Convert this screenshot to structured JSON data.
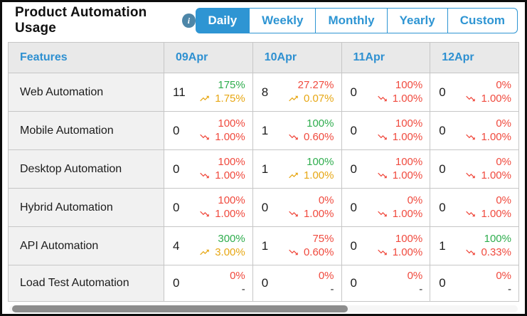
{
  "header": {
    "title": "Product Automation Usage",
    "info_icon_glyph": "i",
    "tabs": [
      {
        "label": "Daily",
        "active": true
      },
      {
        "label": "Weekly",
        "active": false
      },
      {
        "label": "Monthly",
        "active": false
      },
      {
        "label": "Yearly",
        "active": false
      },
      {
        "label": "Custom",
        "active": false
      }
    ]
  },
  "table": {
    "columns": [
      "Features",
      "09Apr",
      "10Apr",
      "11Apr",
      "12Apr"
    ],
    "rows": [
      {
        "feature": "Web Automation",
        "cells": [
          {
            "count": "11",
            "pct": "175%",
            "pct_color": "green",
            "trend": "up",
            "delta": "1.75%",
            "delta_color": "orange"
          },
          {
            "count": "8",
            "pct": "27.27%",
            "pct_color": "red",
            "trend": "up",
            "delta": "0.07%",
            "delta_color": "orange"
          },
          {
            "count": "0",
            "pct": "100%",
            "pct_color": "red",
            "trend": "down",
            "delta": "1.00%",
            "delta_color": "red"
          },
          {
            "count": "0",
            "pct": "0%",
            "pct_color": "red",
            "trend": "down",
            "delta": "1.00%",
            "delta_color": "red"
          }
        ]
      },
      {
        "feature": "Mobile Automation",
        "cells": [
          {
            "count": "0",
            "pct": "100%",
            "pct_color": "red",
            "trend": "down",
            "delta": "1.00%",
            "delta_color": "red"
          },
          {
            "count": "1",
            "pct": "100%",
            "pct_color": "green",
            "trend": "down",
            "delta": "0.60%",
            "delta_color": "red"
          },
          {
            "count": "0",
            "pct": "100%",
            "pct_color": "red",
            "trend": "down",
            "delta": "1.00%",
            "delta_color": "red"
          },
          {
            "count": "0",
            "pct": "0%",
            "pct_color": "red",
            "trend": "down",
            "delta": "1.00%",
            "delta_color": "red"
          }
        ]
      },
      {
        "feature": "Desktop Automation",
        "cells": [
          {
            "count": "0",
            "pct": "100%",
            "pct_color": "red",
            "trend": "down",
            "delta": "1.00%",
            "delta_color": "red"
          },
          {
            "count": "1",
            "pct": "100%",
            "pct_color": "green",
            "trend": "up",
            "delta": "1.00%",
            "delta_color": "orange"
          },
          {
            "count": "0",
            "pct": "100%",
            "pct_color": "red",
            "trend": "down",
            "delta": "1.00%",
            "delta_color": "red"
          },
          {
            "count": "0",
            "pct": "0%",
            "pct_color": "red",
            "trend": "down",
            "delta": "1.00%",
            "delta_color": "red"
          }
        ]
      },
      {
        "feature": "Hybrid Automation",
        "cells": [
          {
            "count": "0",
            "pct": "100%",
            "pct_color": "red",
            "trend": "down",
            "delta": "1.00%",
            "delta_color": "red"
          },
          {
            "count": "0",
            "pct": "0%",
            "pct_color": "red",
            "trend": "down",
            "delta": "1.00%",
            "delta_color": "red"
          },
          {
            "count": "0",
            "pct": "0%",
            "pct_color": "red",
            "trend": "down",
            "delta": "1.00%",
            "delta_color": "red"
          },
          {
            "count": "0",
            "pct": "0%",
            "pct_color": "red",
            "trend": "down",
            "delta": "1.00%",
            "delta_color": "red"
          }
        ]
      },
      {
        "feature": "API Automation",
        "cells": [
          {
            "count": "4",
            "pct": "300%",
            "pct_color": "green",
            "trend": "up",
            "delta": "3.00%",
            "delta_color": "orange"
          },
          {
            "count": "1",
            "pct": "75%",
            "pct_color": "red",
            "trend": "down",
            "delta": "0.60%",
            "delta_color": "red"
          },
          {
            "count": "0",
            "pct": "100%",
            "pct_color": "red",
            "trend": "down",
            "delta": "1.00%",
            "delta_color": "red"
          },
          {
            "count": "1",
            "pct": "100%",
            "pct_color": "green",
            "trend": "down",
            "delta": "0.33%",
            "delta_color": "red"
          }
        ]
      },
      {
        "feature": "Load Test Automation",
        "cells": [
          {
            "count": "0",
            "pct": "0%",
            "pct_color": "red",
            "trend": "none",
            "delta": "-",
            "delta_color": "dark"
          },
          {
            "count": "0",
            "pct": "0%",
            "pct_color": "red",
            "trend": "none",
            "delta": "-",
            "delta_color": "dark"
          },
          {
            "count": "0",
            "pct": "0%",
            "pct_color": "red",
            "trend": "none",
            "delta": "-",
            "delta_color": "dark"
          },
          {
            "count": "0",
            "pct": "0%",
            "pct_color": "red",
            "trend": "none",
            "delta": "-",
            "delta_color": "dark"
          }
        ]
      }
    ]
  },
  "scrollbar": {
    "thumb_width_pct": 66
  },
  "colors": {
    "accent_blue": "#2e95d3",
    "header_text_blue": "#2e90d1",
    "positive_green": "#2fad4e",
    "negative_red": "#f04a3e",
    "warning_orange": "#e7a714",
    "info_icon_bg": "#4d86a8",
    "header_row_bg": "#e9e9e9",
    "feature_cell_bg": "#f1f1f1",
    "scrollbar_thumb": "#8d8d8d"
  }
}
